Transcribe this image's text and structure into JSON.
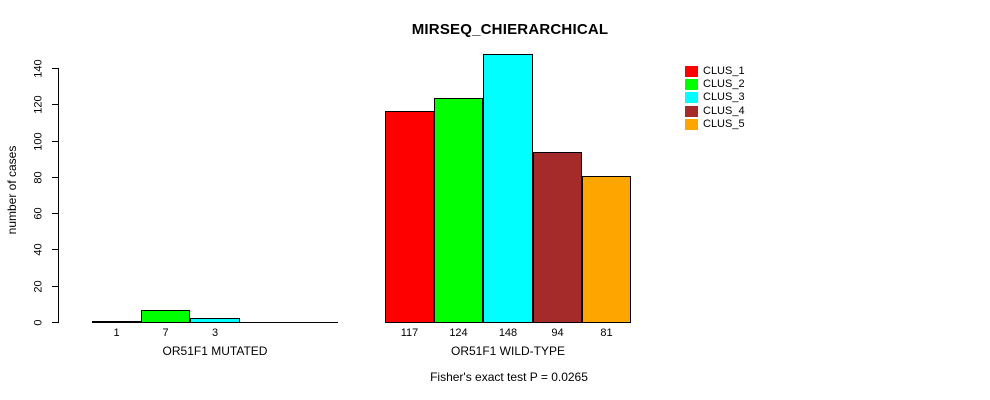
{
  "title": "MIRSEQ_CHIERARCHICAL",
  "y_axis_label": "number of cases",
  "footnote": "Fisher's exact test P = 0.0265",
  "legend": {
    "position": "top-right",
    "items": [
      {
        "label": "CLUS_1",
        "color": "#FF0000"
      },
      {
        "label": "CLUS_2",
        "color": "#00FF00"
      },
      {
        "label": "CLUS_3",
        "color": "#00FFFF"
      },
      {
        "label": "CLUS_4",
        "color": "#A52A2A"
      },
      {
        "label": "CLUS_5",
        "color": "#FFA500"
      }
    ]
  },
  "chart_data": {
    "type": "bar",
    "title": "MIRSEQ_CHIERARCHICAL",
    "ylabel": "number of cases",
    "annotation": "Fisher's exact test P = 0.0265",
    "series_names": [
      "CLUS_1",
      "CLUS_2",
      "CLUS_3",
      "CLUS_4",
      "CLUS_5"
    ],
    "series_colors": [
      "#FF0000",
      "#00FF00",
      "#00FFFF",
      "#A52A2A",
      "#FFA500"
    ],
    "groups": [
      {
        "label": "OR51F1 MUTATED",
        "values": [
          1,
          7,
          3,
          0,
          0
        ],
        "value_labels": [
          "1",
          "7",
          "3",
          "",
          ""
        ]
      },
      {
        "label": "OR51F1 WILD-TYPE",
        "values": [
          117,
          124,
          148,
          94,
          81
        ],
        "value_labels": [
          "117",
          "124",
          "148",
          "94",
          "81"
        ]
      }
    ],
    "yticks": [
      0,
      20,
      40,
      60,
      80,
      100,
      120,
      140
    ],
    "ylim": [
      0,
      140
    ],
    "grid": false,
    "legend_position": "right",
    "background_color": "#FFFFFF",
    "axis_color": "#000000"
  }
}
